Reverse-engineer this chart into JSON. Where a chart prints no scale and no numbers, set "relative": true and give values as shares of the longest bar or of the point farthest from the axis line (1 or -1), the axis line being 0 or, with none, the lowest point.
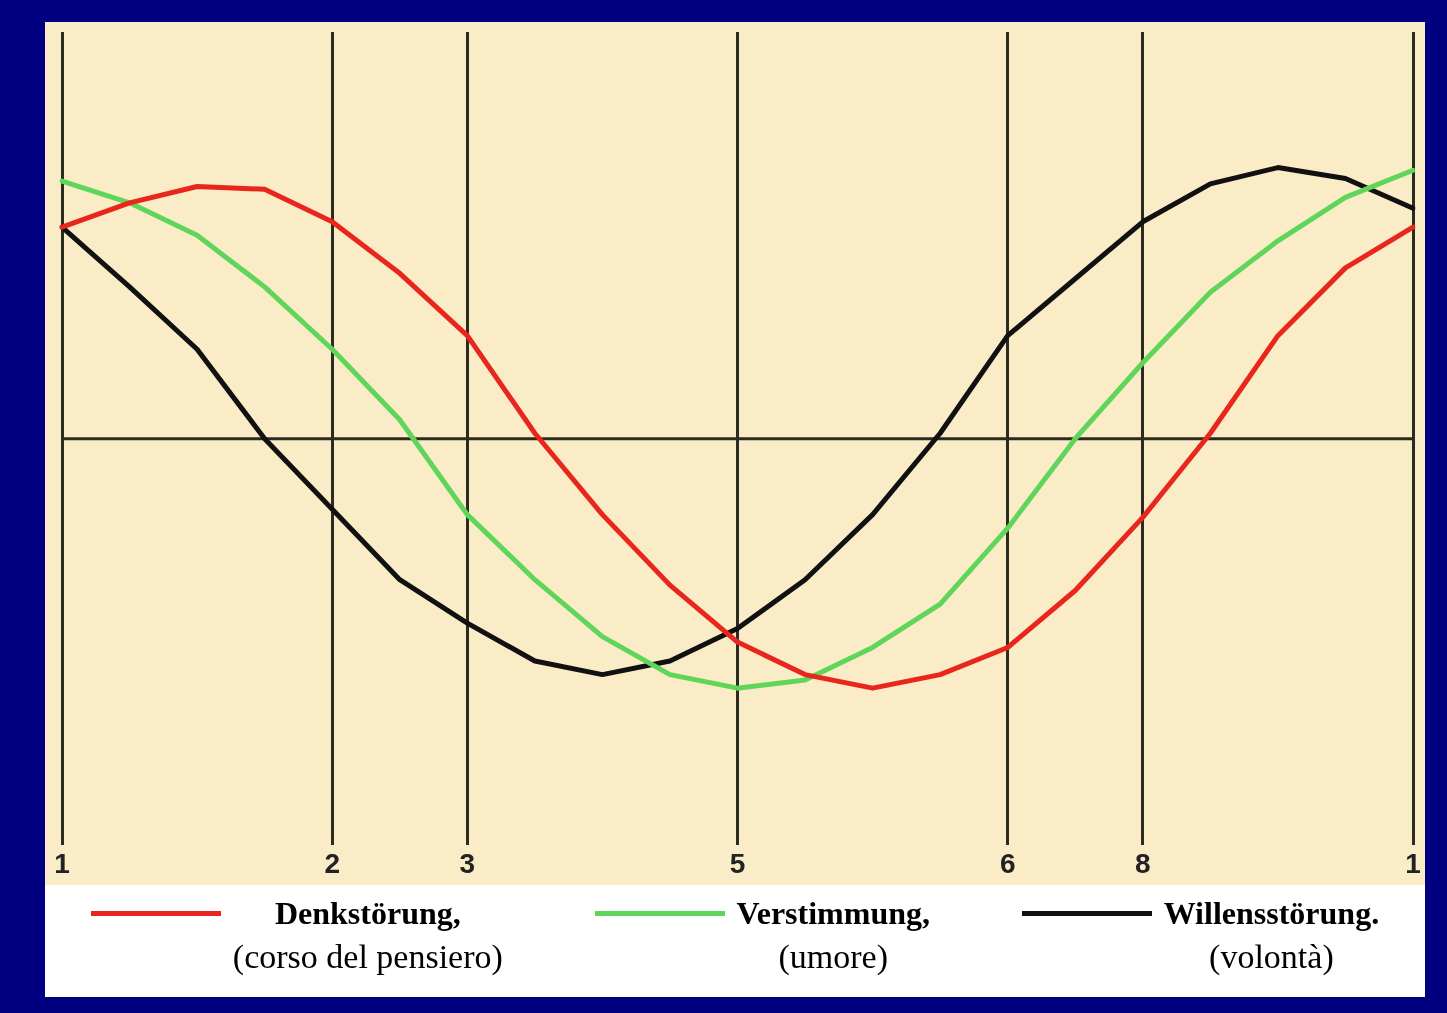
{
  "chart_data": {
    "type": "line",
    "relative": true,
    "grid": "x",
    "legend": "bottom",
    "marker": "none",
    "line_style": "solid",
    "categories": [
      "1",
      null,
      null,
      null,
      "2",
      null,
      "3",
      null,
      null,
      null,
      "5",
      null,
      null,
      null,
      "6",
      null,
      "8",
      null,
      null,
      null,
      "1"
    ],
    "series": [
      {
        "name": "Denkstörung, (corso del pensiero)",
        "color": "#e8261c",
        "values": [
          0.78,
          0.87,
          0.93,
          0.92,
          0.8,
          0.61,
          0.38,
          0.02,
          -0.28,
          -0.54,
          -0.75,
          -0.87,
          -0.92,
          -0.87,
          -0.77,
          -0.56,
          -0.29,
          0.02,
          0.38,
          0.63,
          0.78
        ]
      },
      {
        "name": "Verstimmung, (umore)",
        "color": "#5fd65a",
        "values": [
          0.95,
          0.87,
          0.75,
          0.56,
          0.33,
          0.07,
          -0.28,
          -0.52,
          -0.73,
          -0.87,
          -0.92,
          -0.89,
          -0.77,
          -0.61,
          -0.33,
          0,
          0.28,
          0.54,
          0.73,
          0.89,
          0.99
        ]
      },
      {
        "name": "Willensstörung. (volontà)",
        "color": "#111111",
        "values": [
          0.78,
          0.56,
          0.33,
          0,
          -0.26,
          -0.52,
          -0.68,
          -0.82,
          -0.87,
          -0.82,
          -0.7,
          -0.52,
          -0.28,
          0.02,
          0.38,
          0.59,
          0.8,
          0.94,
          1,
          0.96,
          0.85
        ]
      }
    ]
  }
}
